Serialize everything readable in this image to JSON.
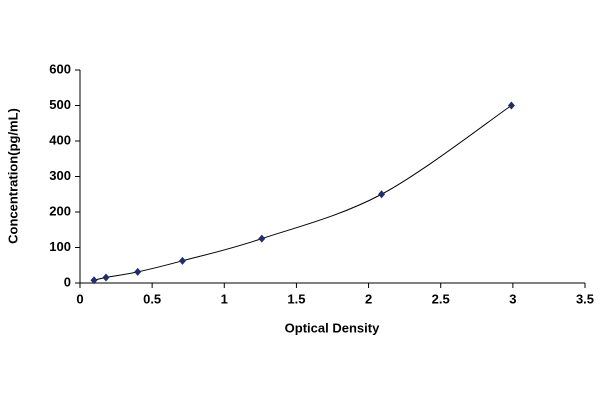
{
  "chart_data": {
    "type": "scatter",
    "x_label": "Optical Density",
    "y_label": "Concentration(pg/mL)",
    "series": [
      {
        "x": [
          0.097,
          0.18,
          0.4,
          0.71,
          1.26,
          2.09,
          2.99
        ],
        "values": [
          7.8,
          15.6,
          31.25,
          62.5,
          125,
          250,
          500
        ],
        "color": "#1f2f6b",
        "line": true,
        "line_color": "#000000"
      }
    ],
    "xlim": [
      0,
      3.5
    ],
    "xticks": [
      0,
      0.5,
      1,
      1.5,
      2,
      2.5,
      3,
      3.5
    ],
    "ylim": [
      0,
      600
    ],
    "yticks": [
      0,
      100,
      200,
      300,
      400,
      500,
      600
    ],
    "grid": false
  }
}
